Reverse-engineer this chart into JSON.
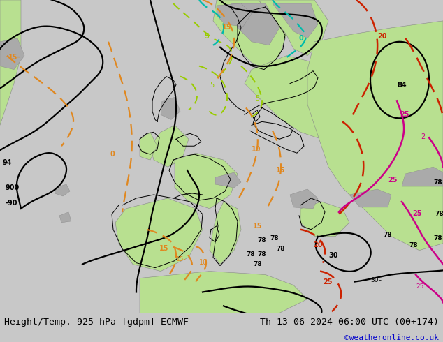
{
  "title_left": "Height/Temp. 925 hPa [gdpm] ECMWF",
  "title_right": "Th 13-06-2024 06:00 UTC (00+174)",
  "credit": "©weatheronline.co.uk",
  "fig_width": 6.34,
  "fig_height": 4.9,
  "dpi": 100,
  "title_fontsize": 9.5,
  "credit_fontsize": 8,
  "credit_color": "#0000cc",
  "bg_color": "#d2cfc8",
  "sea_color": "#d2cfc8",
  "land_green": "#b8e090",
  "land_gray": "#aaaaaa",
  "contour_black_lw": 1.6,
  "contour_orange_lw": 1.6,
  "contour_yg_lw": 1.4,
  "contour_cyan_lw": 1.6,
  "contour_red_lw": 1.8,
  "contour_mag_lw": 1.8
}
